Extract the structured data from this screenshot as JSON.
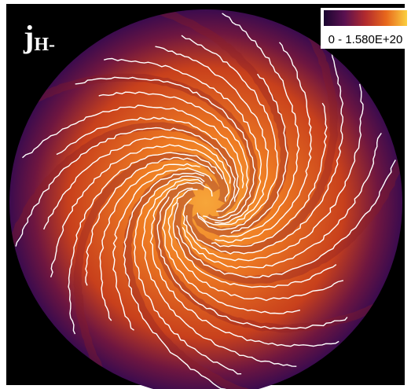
{
  "figure": {
    "label": "j",
    "label_subscript": "H-",
    "colorbar": {
      "label": "0 - 1.580E+20"
    }
  }
}
